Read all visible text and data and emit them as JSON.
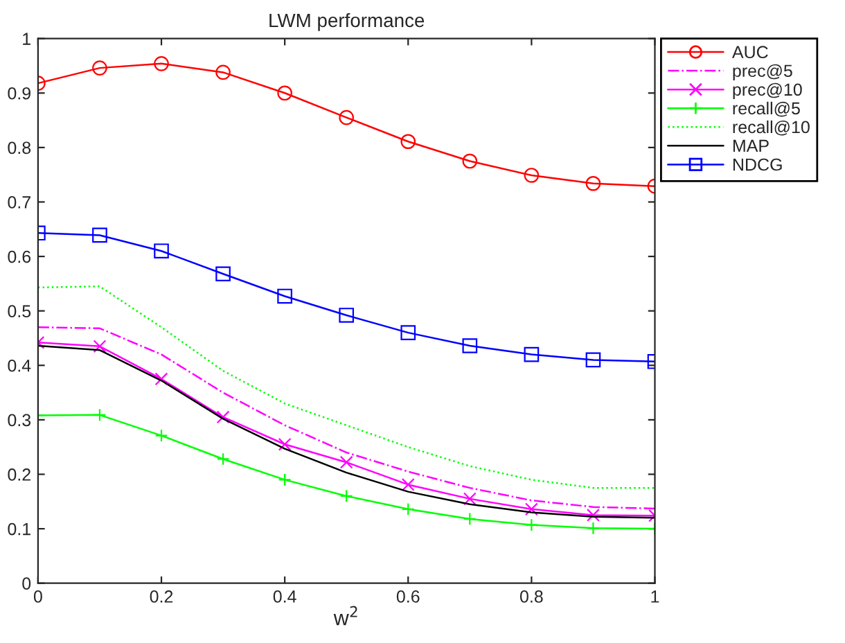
{
  "chart_data": {
    "type": "line",
    "title": "LWM performance",
    "xlabel": "w$^{2}$",
    "x": [
      0,
      0.1,
      0.2,
      0.3,
      0.4,
      0.5,
      0.6,
      0.7,
      0.8,
      0.9,
      1
    ],
    "series": [
      {
        "name": "AUC",
        "color": "#ff0000",
        "marker": "circle",
        "line_style": "solid",
        "values": [
          0.918,
          0.946,
          0.954,
          0.938,
          0.9,
          0.855,
          0.811,
          0.775,
          0.749,
          0.734,
          0.729
        ]
      },
      {
        "name": "prec@5",
        "color": "#ff00ff",
        "marker": "none",
        "line_style": "dashdot",
        "values": [
          0.47,
          0.468,
          0.42,
          0.35,
          0.29,
          0.24,
          0.205,
          0.175,
          0.152,
          0.14,
          0.137
        ]
      },
      {
        "name": "prec@10",
        "color": "#ff00ff",
        "marker": "cross",
        "line_style": "solid",
        "values": [
          0.442,
          0.435,
          0.375,
          0.305,
          0.255,
          0.222,
          0.181,
          0.155,
          0.136,
          0.125,
          0.124
        ]
      },
      {
        "name": "recall@5",
        "color": "#00ff00",
        "marker": "plus",
        "line_style": "solid",
        "values": [
          0.308,
          0.309,
          0.271,
          0.228,
          0.19,
          0.16,
          0.136,
          0.118,
          0.107,
          0.101,
          0.1
        ]
      },
      {
        "name": "recall@10",
        "color": "#00ff00",
        "marker": "none",
        "line_style": "dotted",
        "values": [
          0.543,
          0.545,
          0.47,
          0.39,
          0.33,
          0.29,
          0.25,
          0.215,
          0.19,
          0.175,
          0.175
        ]
      },
      {
        "name": "MAP",
        "color": "#000000",
        "marker": "none",
        "line_style": "solid",
        "values": [
          0.436,
          0.428,
          0.372,
          0.302,
          0.247,
          0.203,
          0.168,
          0.145,
          0.13,
          0.122,
          0.12
        ]
      },
      {
        "name": "NDCG",
        "color": "#0000ff",
        "marker": "square",
        "line_style": "solid",
        "values": [
          0.643,
          0.639,
          0.61,
          0.568,
          0.527,
          0.492,
          0.46,
          0.436,
          0.42,
          0.41,
          0.407
        ]
      }
    ],
    "xlim": [
      0,
      1
    ],
    "xticks": [
      0,
      0.2,
      0.4,
      0.6,
      0.8,
      1
    ],
    "ylim": [
      0,
      1
    ],
    "yticks": [
      0,
      0.1,
      0.2,
      0.3,
      0.4,
      0.5,
      0.6,
      0.7,
      0.8,
      0.9,
      1
    ],
    "grid": false,
    "legend": "top right"
  }
}
